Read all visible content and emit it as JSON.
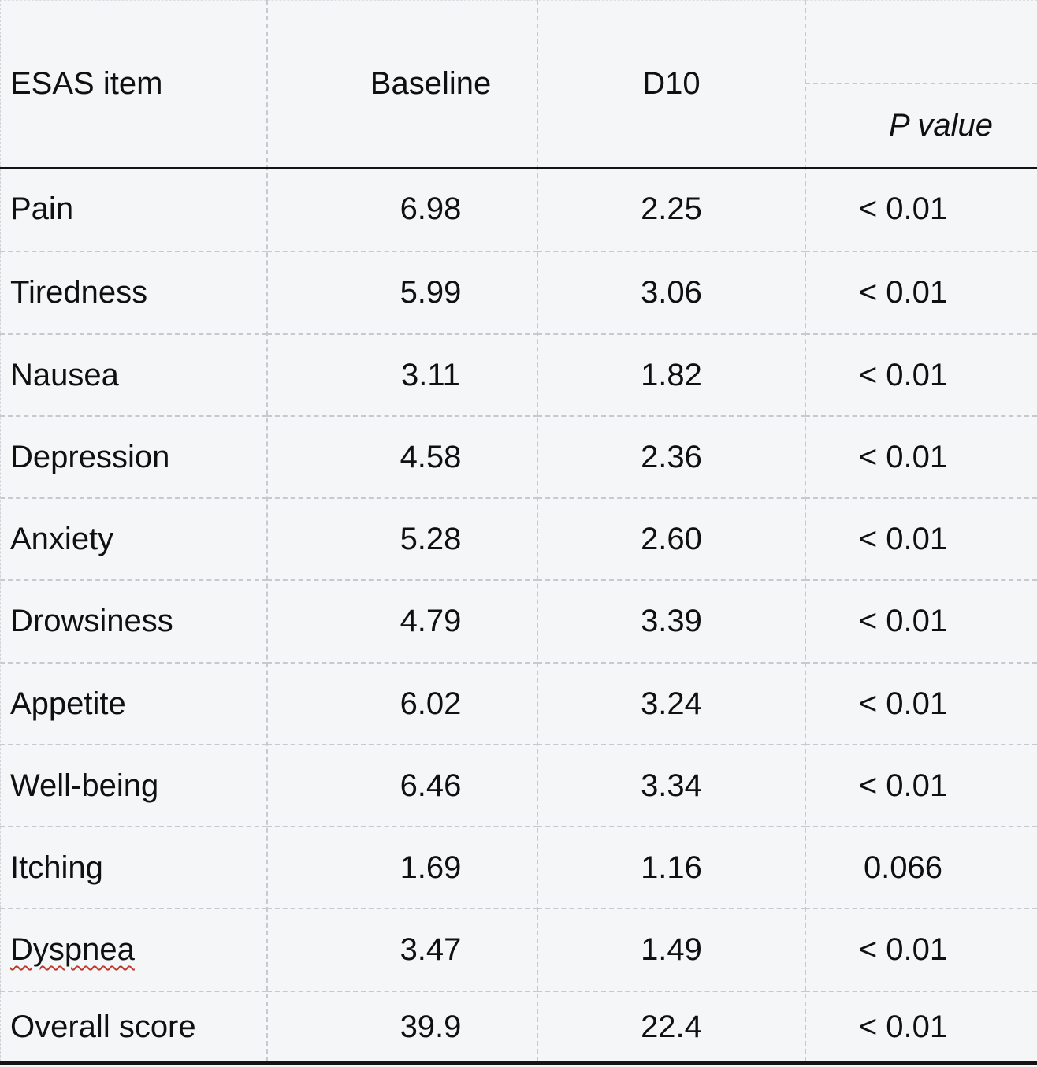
{
  "table": {
    "header": {
      "item": "ESAS item",
      "baseline": "Baseline",
      "d10": "D10",
      "p_value": "P value"
    },
    "rows": [
      {
        "item": "Pain",
        "baseline": "6.98",
        "d10": "2.25",
        "p": "< 0.01"
      },
      {
        "item": "Tiredness",
        "baseline": "5.99",
        "d10": "3.06",
        "p": "< 0.01"
      },
      {
        "item": "Nausea",
        "baseline": "3.11",
        "d10": "1.82",
        "p": "< 0.01"
      },
      {
        "item": "Depression",
        "baseline": "4.58",
        "d10": "2.36",
        "p": "< 0.01"
      },
      {
        "item": "Anxiety",
        "baseline": "5.28",
        "d10": "2.60",
        "p": "< 0.01"
      },
      {
        "item": "Drowsiness",
        "baseline": "4.79",
        "d10": "3.39",
        "p": "< 0.01"
      },
      {
        "item": "Appetite",
        "baseline": "6.02",
        "d10": "3.24",
        "p": "< 0.01"
      },
      {
        "item": "Well-being",
        "baseline": "6.46",
        "d10": "3.34",
        "p": "< 0.01"
      },
      {
        "item": "Itching",
        "baseline": "1.69",
        "d10": "1.16",
        "p": "0.066"
      },
      {
        "item": "Dyspnea",
        "baseline": "3.47",
        "d10": "1.49",
        "p": "< 0.01"
      },
      {
        "item": "Overall score",
        "baseline": "39.9",
        "d10": "22.4",
        "p": "< 0.01"
      }
    ],
    "spellcheck": {
      "misspelled_word": "Dyspnea"
    }
  },
  "colors": {
    "background": "#f5f6f8",
    "gridline": "#c6c9ce",
    "header_rule": "#141414",
    "text": "#101010",
    "spellcheck_underline": "#bf392b"
  }
}
